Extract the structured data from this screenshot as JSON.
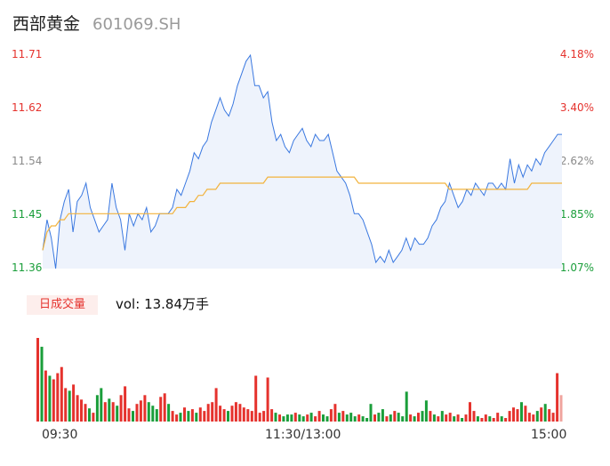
{
  "header": {
    "name": "西部黄金",
    "code": "601069.SH"
  },
  "volume": {
    "tab_label": "日成交量",
    "vol_prefix": "vol:",
    "vol_value": "13.84万手"
  },
  "colors": {
    "up": "#e5322d",
    "down": "#1a9e3a",
    "price_line": "#3a78e0",
    "avg_line": "#f2b33d",
    "fill": "#eef3fc"
  },
  "chart_data": {
    "type": "line",
    "y_left_ticks": [
      "11.71",
      "11.62",
      "11.54",
      "11.45",
      "11.36"
    ],
    "y_right_ticks": [
      "4.18%",
      "3.40%",
      "2.62%",
      "1.85%",
      "1.07%"
    ],
    "ylim": [
      11.36,
      11.71
    ],
    "x_ticks": [
      "09:30",
      "11:30/13:00",
      "15:00"
    ],
    "series": [
      {
        "values": [
          11.39,
          11.44,
          11.41,
          11.36,
          11.44,
          11.47,
          11.49,
          11.42,
          11.47,
          11.48,
          11.5,
          11.46,
          11.44,
          11.42,
          11.43,
          11.44,
          11.5,
          11.46,
          11.44,
          11.39,
          11.45,
          11.43,
          11.45,
          11.44,
          11.46,
          11.42,
          11.43,
          11.45,
          11.45,
          11.45,
          11.46,
          11.49,
          11.48,
          11.5,
          11.52,
          11.55,
          11.54,
          11.56,
          11.57,
          11.6,
          11.62,
          11.64,
          11.62,
          11.61,
          11.63,
          11.66,
          11.68,
          11.7,
          11.71,
          11.66,
          11.66,
          11.64,
          11.65,
          11.6,
          11.57,
          11.58,
          11.56,
          11.55,
          11.57,
          11.58,
          11.59,
          11.57,
          11.56,
          11.58,
          11.57,
          11.57,
          11.58,
          11.55,
          11.52,
          11.51,
          11.5,
          11.48,
          11.45,
          11.45,
          11.44,
          11.42,
          11.4,
          11.37,
          11.38,
          11.37,
          11.39,
          11.37,
          11.38,
          11.39,
          11.41,
          11.39,
          11.41,
          11.4,
          11.4,
          11.41,
          11.43,
          11.44,
          11.46,
          11.47,
          11.5,
          11.48,
          11.46,
          11.47,
          11.49,
          11.48,
          11.5,
          11.49,
          11.48,
          11.5,
          11.5,
          11.49,
          11.5,
          11.49,
          11.54,
          11.5,
          11.53,
          11.51,
          11.53,
          11.52,
          11.54,
          11.53,
          11.55,
          11.56,
          11.57,
          11.58,
          11.58
        ]
      },
      {
        "values": [
          11.39,
          11.42,
          11.43,
          11.43,
          11.44,
          11.44,
          11.45,
          11.45,
          11.45,
          11.45,
          11.45,
          11.45,
          11.45,
          11.45,
          11.45,
          11.45,
          11.45,
          11.45,
          11.45,
          11.45,
          11.45,
          11.45,
          11.45,
          11.45,
          11.45,
          11.45,
          11.45,
          11.45,
          11.45,
          11.45,
          11.45,
          11.46,
          11.46,
          11.46,
          11.47,
          11.47,
          11.48,
          11.48,
          11.49,
          11.49,
          11.49,
          11.5,
          11.5,
          11.5,
          11.5,
          11.5,
          11.5,
          11.5,
          11.5,
          11.5,
          11.5,
          11.5,
          11.51,
          11.51,
          11.51,
          11.51,
          11.51,
          11.51,
          11.51,
          11.51,
          11.51,
          11.51,
          11.51,
          11.51,
          11.51,
          11.51,
          11.51,
          11.51,
          11.51,
          11.51,
          11.51,
          11.51,
          11.51,
          11.5,
          11.5,
          11.5,
          11.5,
          11.5,
          11.5,
          11.5,
          11.5,
          11.5,
          11.5,
          11.5,
          11.5,
          11.5,
          11.5,
          11.5,
          11.5,
          11.5,
          11.5,
          11.5,
          11.5,
          11.5,
          11.49,
          11.49,
          11.49,
          11.49,
          11.49,
          11.49,
          11.49,
          11.49,
          11.49,
          11.49,
          11.49,
          11.49,
          11.49,
          11.49,
          11.49,
          11.49,
          11.49,
          11.49,
          11.49,
          11.5,
          11.5,
          11.5,
          11.5,
          11.5,
          11.5,
          11.5,
          11.5
        ]
      }
    ],
    "volume_bars": [
      {
        "v": 95,
        "d": "up"
      },
      {
        "v": 85,
        "d": "down"
      },
      {
        "v": 58,
        "d": "up"
      },
      {
        "v": 52,
        "d": "down"
      },
      {
        "v": 48,
        "d": "up"
      },
      {
        "v": 55,
        "d": "up"
      },
      {
        "v": 62,
        "d": "up"
      },
      {
        "v": 38,
        "d": "up"
      },
      {
        "v": 35,
        "d": "down"
      },
      {
        "v": 42,
        "d": "up"
      },
      {
        "v": 30,
        "d": "up"
      },
      {
        "v": 25,
        "d": "up"
      },
      {
        "v": 20,
        "d": "up"
      },
      {
        "v": 15,
        "d": "down"
      },
      {
        "v": 10,
        "d": "up"
      },
      {
        "v": 30,
        "d": "down"
      },
      {
        "v": 38,
        "d": "down"
      },
      {
        "v": 22,
        "d": "up"
      },
      {
        "v": 26,
        "d": "down"
      },
      {
        "v": 22,
        "d": "up"
      },
      {
        "v": 18,
        "d": "down"
      },
      {
        "v": 30,
        "d": "up"
      },
      {
        "v": 40,
        "d": "up"
      },
      {
        "v": 15,
        "d": "up"
      },
      {
        "v": 12,
        "d": "down"
      },
      {
        "v": 20,
        "d": "up"
      },
      {
        "v": 24,
        "d": "up"
      },
      {
        "v": 30,
        "d": "up"
      },
      {
        "v": 22,
        "d": "down"
      },
      {
        "v": 18,
        "d": "down"
      },
      {
        "v": 14,
        "d": "down"
      },
      {
        "v": 28,
        "d": "up"
      },
      {
        "v": 32,
        "d": "up"
      },
      {
        "v": 20,
        "d": "down"
      },
      {
        "v": 12,
        "d": "up"
      },
      {
        "v": 8,
        "d": "up"
      },
      {
        "v": 10,
        "d": "down"
      },
      {
        "v": 16,
        "d": "up"
      },
      {
        "v": 12,
        "d": "down"
      },
      {
        "v": 14,
        "d": "up"
      },
      {
        "v": 10,
        "d": "down"
      },
      {
        "v": 16,
        "d": "up"
      },
      {
        "v": 12,
        "d": "up"
      },
      {
        "v": 20,
        "d": "up"
      },
      {
        "v": 22,
        "d": "up"
      },
      {
        "v": 38,
        "d": "up"
      },
      {
        "v": 18,
        "d": "up"
      },
      {
        "v": 14,
        "d": "up"
      },
      {
        "v": 12,
        "d": "down"
      },
      {
        "v": 18,
        "d": "up"
      },
      {
        "v": 22,
        "d": "up"
      },
      {
        "v": 20,
        "d": "up"
      },
      {
        "v": 16,
        "d": "up"
      },
      {
        "v": 14,
        "d": "up"
      },
      {
        "v": 12,
        "d": "up"
      },
      {
        "v": 52,
        "d": "up"
      },
      {
        "v": 10,
        "d": "up"
      },
      {
        "v": 12,
        "d": "up"
      },
      {
        "v": 50,
        "d": "up"
      },
      {
        "v": 14,
        "d": "up"
      },
      {
        "v": 10,
        "d": "down"
      },
      {
        "v": 8,
        "d": "up"
      },
      {
        "v": 6,
        "d": "down"
      },
      {
        "v": 8,
        "d": "down"
      },
      {
        "v": 8,
        "d": "down"
      },
      {
        "v": 10,
        "d": "up"
      },
      {
        "v": 8,
        "d": "down"
      },
      {
        "v": 6,
        "d": "down"
      },
      {
        "v": 8,
        "d": "up"
      },
      {
        "v": 10,
        "d": "down"
      },
      {
        "v": 6,
        "d": "up"
      },
      {
        "v": 12,
        "d": "up"
      },
      {
        "v": 8,
        "d": "down"
      },
      {
        "v": 6,
        "d": "down"
      },
      {
        "v": 14,
        "d": "up"
      },
      {
        "v": 20,
        "d": "up"
      },
      {
        "v": 10,
        "d": "down"
      },
      {
        "v": 12,
        "d": "up"
      },
      {
        "v": 8,
        "d": "down"
      },
      {
        "v": 10,
        "d": "down"
      },
      {
        "v": 6,
        "d": "down"
      },
      {
        "v": 8,
        "d": "up"
      },
      {
        "v": 6,
        "d": "down"
      },
      {
        "v": 4,
        "d": "down"
      },
      {
        "v": 20,
        "d": "down"
      },
      {
        "v": 8,
        "d": "up"
      },
      {
        "v": 10,
        "d": "down"
      },
      {
        "v": 14,
        "d": "down"
      },
      {
        "v": 6,
        "d": "up"
      },
      {
        "v": 8,
        "d": "down"
      },
      {
        "v": 12,
        "d": "up"
      },
      {
        "v": 10,
        "d": "down"
      },
      {
        "v": 6,
        "d": "down"
      },
      {
        "v": 34,
        "d": "down"
      },
      {
        "v": 8,
        "d": "up"
      },
      {
        "v": 6,
        "d": "down"
      },
      {
        "v": 10,
        "d": "up"
      },
      {
        "v": 12,
        "d": "down"
      },
      {
        "v": 24,
        "d": "down"
      },
      {
        "v": 12,
        "d": "up"
      },
      {
        "v": 8,
        "d": "down"
      },
      {
        "v": 6,
        "d": "up"
      },
      {
        "v": 12,
        "d": "down"
      },
      {
        "v": 8,
        "d": "up"
      },
      {
        "v": 10,
        "d": "up"
      },
      {
        "v": 6,
        "d": "down"
      },
      {
        "v": 8,
        "d": "up"
      },
      {
        "v": 4,
        "d": "down"
      },
      {
        "v": 8,
        "d": "up"
      },
      {
        "v": 22,
        "d": "up"
      },
      {
        "v": 12,
        "d": "up"
      },
      {
        "v": 6,
        "d": "down"
      },
      {
        "v": 4,
        "d": "up"
      },
      {
        "v": 8,
        "d": "up"
      },
      {
        "v": 6,
        "d": "down"
      },
      {
        "v": 4,
        "d": "up"
      },
      {
        "v": 10,
        "d": "up"
      },
      {
        "v": 6,
        "d": "down"
      },
      {
        "v": 4,
        "d": "up"
      },
      {
        "v": 12,
        "d": "up"
      },
      {
        "v": 16,
        "d": "up"
      },
      {
        "v": 14,
        "d": "up"
      },
      {
        "v": 22,
        "d": "down"
      },
      {
        "v": 18,
        "d": "up"
      },
      {
        "v": 10,
        "d": "up"
      },
      {
        "v": 8,
        "d": "up"
      },
      {
        "v": 12,
        "d": "down"
      },
      {
        "v": 16,
        "d": "up"
      },
      {
        "v": 20,
        "d": "down"
      },
      {
        "v": 14,
        "d": "up"
      },
      {
        "v": 10,
        "d": "up"
      },
      {
        "v": 55,
        "d": "up"
      },
      {
        "v": 30,
        "d": "flat"
      }
    ]
  }
}
